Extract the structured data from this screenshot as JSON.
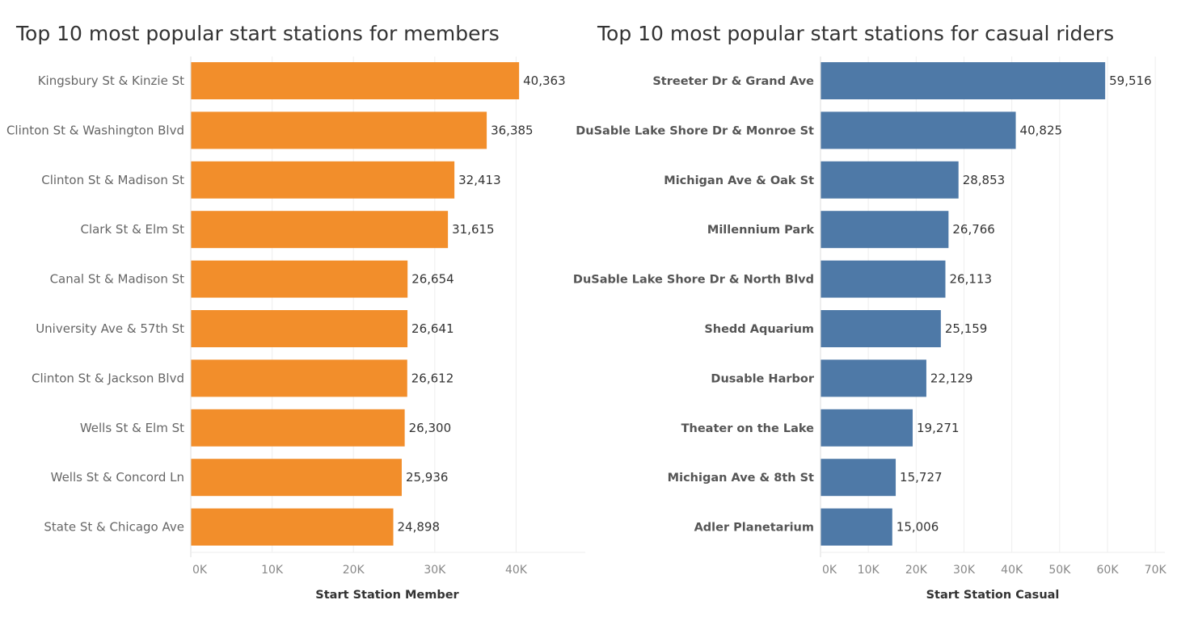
{
  "chart_data": [
    {
      "type": "bar",
      "orientation": "horizontal",
      "title": "Top 10 most popular start stations for members",
      "xlabel": "Start Station Member",
      "ylabel": "",
      "color": "#f28e2b",
      "categories": [
        "Kingsbury St & Kinzie St",
        "Clinton St & Washington Blvd",
        "Clinton St & Madison St",
        "Clark St & Elm St",
        "Canal St & Madison St",
        "University Ave & 57th St",
        "Clinton St & Jackson Blvd",
        "Wells St & Elm St",
        "Wells St & Concord Ln",
        "State St & Chicago Ave"
      ],
      "values": [
        40363,
        36385,
        32413,
        31615,
        26654,
        26641,
        26612,
        26300,
        25936,
        24898
      ],
      "value_labels": [
        "40,363",
        "36,385",
        "32,413",
        "31,615",
        "26,654",
        "26,641",
        "26,612",
        "26,300",
        "25,936",
        "24,898"
      ],
      "xlim": [
        0,
        48500
      ],
      "ticks": [
        0,
        10000,
        20000,
        30000,
        40000
      ],
      "tick_labels": [
        "0K",
        "10K",
        "20K",
        "30K",
        "40K"
      ],
      "grid": true,
      "legend": "none",
      "bold_category_labels": false
    },
    {
      "type": "bar",
      "orientation": "horizontal",
      "title": "Top 10 most popular start stations for casual riders",
      "xlabel": "Start Station Casual",
      "ylabel": "",
      "color": "#4e79a7",
      "categories": [
        "Streeter Dr & Grand Ave",
        "DuSable Lake Shore Dr & Monroe St",
        "Michigan Ave & Oak St",
        "Millennium Park",
        "DuSable Lake Shore Dr & North Blvd",
        "Shedd Aquarium",
        "Dusable Harbor",
        "Theater on the Lake",
        "Michigan Ave & 8th St",
        "Adler Planetarium"
      ],
      "values": [
        59516,
        40825,
        28853,
        26766,
        26113,
        25159,
        22129,
        19271,
        15727,
        15006
      ],
      "value_labels": [
        "59,516",
        "40,825",
        "28,853",
        "26,766",
        "26,113",
        "25,159",
        "22,129",
        "19,271",
        "15,727",
        "15,006"
      ],
      "xlim": [
        0,
        72000
      ],
      "ticks": [
        0,
        10000,
        20000,
        30000,
        40000,
        50000,
        60000,
        70000
      ],
      "tick_labels": [
        "0K",
        "10K",
        "20K",
        "30K",
        "40K",
        "50K",
        "60K",
        "70K"
      ],
      "grid": true,
      "legend": "none",
      "bold_category_labels": true
    }
  ]
}
